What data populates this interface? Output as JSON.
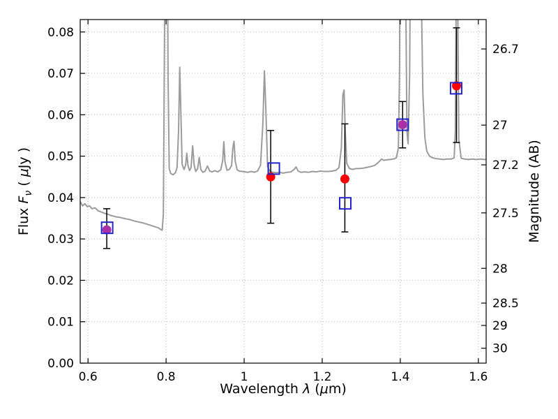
{
  "figure": {
    "xlabel": {
      "prefix": "Wavelength ",
      "lambda": "λ",
      "open": " (",
      "mu": "μ",
      "close": "m)"
    },
    "ylabel_left": {
      "prefix": "Flux ",
      "f": "F",
      "nu": "ν",
      "open": " ( ",
      "mu": "μ",
      "close": "Jy )"
    },
    "ylabel_right": "Magnitude (AB)"
  },
  "chart_data": {
    "type": "line",
    "title": "",
    "xlabel": "Wavelength λ (μm)",
    "ylabel": "Flux Fν ( μJy )",
    "ylabel_right": "Magnitude (AB)",
    "xlim": [
      0.58,
      1.62
    ],
    "ylim": [
      0,
      0.083
    ],
    "grid": {
      "show": true,
      "style": "dotted",
      "color": "#b5b5b5"
    },
    "legend": "none",
    "x_ticks": [
      {
        "v": 0.6,
        "label": "0.6"
      },
      {
        "v": 0.8,
        "label": "0.8"
      },
      {
        "v": 1.0,
        "label": "1"
      },
      {
        "v": 1.2,
        "label": "1.2"
      },
      {
        "v": 1.4,
        "label": "1.4"
      },
      {
        "v": 1.6,
        "label": "1.6"
      }
    ],
    "y_ticks_left": [
      {
        "v": 0.0,
        "label": "0.00"
      },
      {
        "v": 0.01,
        "label": "0.01"
      },
      {
        "v": 0.02,
        "label": "0.02"
      },
      {
        "v": 0.03,
        "label": "0.03"
      },
      {
        "v": 0.04,
        "label": "0.04"
      },
      {
        "v": 0.05,
        "label": "0.05"
      },
      {
        "v": 0.06,
        "label": "0.06"
      },
      {
        "v": 0.07,
        "label": "0.07"
      },
      {
        "v": 0.08,
        "label": "0.08"
      }
    ],
    "y_ticks_right": [
      {
        "label": "26.7",
        "mag": 26.7,
        "flux": 0.0759
      },
      {
        "label": "27",
        "mag": 27.0,
        "flux": 0.0575
      },
      {
        "label": "27.2",
        "mag": 27.2,
        "flux": 0.0479
      },
      {
        "label": "27.5",
        "mag": 27.5,
        "flux": 0.0363
      },
      {
        "label": "28",
        "mag": 28.0,
        "flux": 0.0229
      },
      {
        "label": "28.5",
        "mag": 28.5,
        "flux": 0.0145
      },
      {
        "label": "29",
        "mag": 29.0,
        "flux": 0.0091
      },
      {
        "label": "30",
        "mag": 30.0,
        "flux": 0.0036
      }
    ],
    "series": [
      {
        "name": "model-spectrum",
        "type": "line",
        "color": "#9b9b9b",
        "linewidth": 2,
        "points": [
          [
            0.58,
            0.039
          ],
          [
            0.586,
            0.038
          ],
          [
            0.592,
            0.0385
          ],
          [
            0.598,
            0.0378
          ],
          [
            0.604,
            0.038
          ],
          [
            0.61,
            0.0373
          ],
          [
            0.618,
            0.0375
          ],
          [
            0.626,
            0.0368
          ],
          [
            0.634,
            0.0365
          ],
          [
            0.642,
            0.0362
          ],
          [
            0.65,
            0.036
          ],
          [
            0.658,
            0.0357
          ],
          [
            0.666,
            0.0355
          ],
          [
            0.674,
            0.0353
          ],
          [
            0.682,
            0.0352
          ],
          [
            0.69,
            0.035
          ],
          [
            0.7,
            0.0348
          ],
          [
            0.71,
            0.0346
          ],
          [
            0.72,
            0.0343
          ],
          [
            0.73,
            0.0341
          ],
          [
            0.74,
            0.0339
          ],
          [
            0.75,
            0.0336
          ],
          [
            0.76,
            0.0333
          ],
          [
            0.77,
            0.033
          ],
          [
            0.78,
            0.0327
          ],
          [
            0.786,
            0.0323
          ],
          [
            0.79,
            0.0321
          ],
          [
            0.793,
            0.036
          ],
          [
            0.796,
            0.08
          ],
          [
            0.799,
            0.14
          ],
          [
            0.802,
            0.14
          ],
          [
            0.805,
            0.07
          ],
          [
            0.808,
            0.047
          ],
          [
            0.812,
            0.0458
          ],
          [
            0.818,
            0.0455
          ],
          [
            0.824,
            0.046
          ],
          [
            0.828,
            0.0472
          ],
          [
            0.832,
            0.056
          ],
          [
            0.835,
            0.0715
          ],
          [
            0.838,
            0.06
          ],
          [
            0.841,
            0.048
          ],
          [
            0.846,
            0.0468
          ],
          [
            0.85,
            0.0478
          ],
          [
            0.853,
            0.0507
          ],
          [
            0.856,
            0.0478
          ],
          [
            0.86,
            0.0465
          ],
          [
            0.864,
            0.0472
          ],
          [
            0.868,
            0.0525
          ],
          [
            0.872,
            0.0478
          ],
          [
            0.876,
            0.0463
          ],
          [
            0.881,
            0.047
          ],
          [
            0.885,
            0.0497
          ],
          [
            0.889,
            0.0468
          ],
          [
            0.894,
            0.0461
          ],
          [
            0.9,
            0.0464
          ],
          [
            0.906,
            0.0476
          ],
          [
            0.912,
            0.0464
          ],
          [
            0.918,
            0.0462
          ],
          [
            0.925,
            0.0465
          ],
          [
            0.932,
            0.0462
          ],
          [
            0.94,
            0.0467
          ],
          [
            0.945,
            0.049
          ],
          [
            0.948,
            0.0535
          ],
          [
            0.951,
            0.0486
          ],
          [
            0.956,
            0.0466
          ],
          [
            0.962,
            0.0468
          ],
          [
            0.968,
            0.0478
          ],
          [
            0.971,
            0.052
          ],
          [
            0.974,
            0.0536
          ],
          [
            0.977,
            0.0488
          ],
          [
            0.982,
            0.0467
          ],
          [
            0.988,
            0.0464
          ],
          [
            0.995,
            0.0463
          ],
          [
            1.002,
            0.0462
          ],
          [
            1.01,
            0.0461
          ],
          [
            1.018,
            0.0463
          ],
          [
            1.026,
            0.0461
          ],
          [
            1.034,
            0.0464
          ],
          [
            1.042,
            0.0478
          ],
          [
            1.048,
            0.058
          ],
          [
            1.052,
            0.0706
          ],
          [
            1.056,
            0.06
          ],
          [
            1.06,
            0.0475
          ],
          [
            1.066,
            0.0463
          ],
          [
            1.074,
            0.0461
          ],
          [
            1.082,
            0.046
          ],
          [
            1.09,
            0.0461
          ],
          [
            1.1,
            0.0459
          ],
          [
            1.11,
            0.0461
          ],
          [
            1.12,
            0.0462
          ],
          [
            1.128,
            0.0468
          ],
          [
            1.133,
            0.0474
          ],
          [
            1.138,
            0.0464
          ],
          [
            1.146,
            0.0461
          ],
          [
            1.155,
            0.0462
          ],
          [
            1.165,
            0.0461
          ],
          [
            1.175,
            0.0463
          ],
          [
            1.185,
            0.0462
          ],
          [
            1.195,
            0.0464
          ],
          [
            1.205,
            0.0463
          ],
          [
            1.215,
            0.0463
          ],
          [
            1.225,
            0.0464
          ],
          [
            1.235,
            0.0466
          ],
          [
            1.243,
            0.0472
          ],
          [
            1.249,
            0.052
          ],
          [
            1.253,
            0.0648
          ],
          [
            1.256,
            0.066
          ],
          [
            1.259,
            0.056
          ],
          [
            1.263,
            0.0482
          ],
          [
            1.27,
            0.047
          ],
          [
            1.278,
            0.0468
          ],
          [
            1.286,
            0.047
          ],
          [
            1.295,
            0.047
          ],
          [
            1.305,
            0.0471
          ],
          [
            1.315,
            0.0473
          ],
          [
            1.325,
            0.0475
          ],
          [
            1.335,
            0.0478
          ],
          [
            1.345,
            0.0486
          ],
          [
            1.352,
            0.0493
          ],
          [
            1.358,
            0.049
          ],
          [
            1.366,
            0.0491
          ],
          [
            1.374,
            0.0492
          ],
          [
            1.382,
            0.0493
          ],
          [
            1.39,
            0.0496
          ],
          [
            1.395,
            0.052
          ],
          [
            1.398,
            0.07
          ],
          [
            1.401,
            0.13
          ],
          [
            1.41,
            0.14
          ],
          [
            1.414,
            0.09
          ],
          [
            1.417,
            0.056
          ],
          [
            1.42,
            0.053
          ],
          [
            1.424,
            0.07
          ],
          [
            1.428,
            0.13
          ],
          [
            1.436,
            0.14
          ],
          [
            1.444,
            0.135
          ],
          [
            1.452,
            0.1
          ],
          [
            1.458,
            0.065
          ],
          [
            1.463,
            0.0545
          ],
          [
            1.468,
            0.0512
          ],
          [
            1.475,
            0.05
          ],
          [
            1.483,
            0.0496
          ],
          [
            1.492,
            0.0494
          ],
          [
            1.501,
            0.0493
          ],
          [
            1.51,
            0.0492
          ],
          [
            1.52,
            0.0493
          ],
          [
            1.53,
            0.0493
          ],
          [
            1.538,
            0.0496
          ],
          [
            1.541,
            0.056
          ],
          [
            1.544,
            0.1
          ],
          [
            1.547,
            0.09
          ],
          [
            1.55,
            0.054
          ],
          [
            1.556,
            0.0495
          ],
          [
            1.565,
            0.0493
          ],
          [
            1.575,
            0.0492
          ],
          [
            1.585,
            0.0493
          ],
          [
            1.595,
            0.0492
          ],
          [
            1.605,
            0.0493
          ],
          [
            1.615,
            0.0492
          ],
          [
            1.62,
            0.0492
          ]
        ]
      },
      {
        "name": "observed-photometry",
        "type": "scatter",
        "marker": "circle",
        "errorbar_color": "#000000",
        "points": [
          {
            "x": 0.648,
            "y": 0.0322,
            "err_lo": 0.0277,
            "err_hi": 0.0373,
            "color": "#aa30aa"
          },
          {
            "x": 1.068,
            "y": 0.045,
            "err_lo": 0.0338,
            "err_hi": 0.0562,
            "color": "#ff0000"
          },
          {
            "x": 1.258,
            "y": 0.0445,
            "err_lo": 0.0317,
            "err_hi": 0.0578,
            "color": "#ff0000"
          },
          {
            "x": 1.406,
            "y": 0.0576,
            "err_lo": 0.052,
            "err_hi": 0.0632,
            "color": "#aa30aa"
          },
          {
            "x": 1.544,
            "y": 0.067,
            "err_lo": 0.0533,
            "err_hi": 0.081,
            "color": "#ff0000"
          }
        ]
      },
      {
        "name": "model-photometry",
        "type": "scatter",
        "marker": "open-square",
        "color": "#2323cd",
        "points": [
          {
            "x": 0.649,
            "y": 0.0327
          },
          {
            "x": 1.076,
            "y": 0.047
          },
          {
            "x": 1.259,
            "y": 0.0386
          },
          {
            "x": 1.406,
            "y": 0.0576
          },
          {
            "x": 1.543,
            "y": 0.0664
          }
        ]
      }
    ]
  }
}
